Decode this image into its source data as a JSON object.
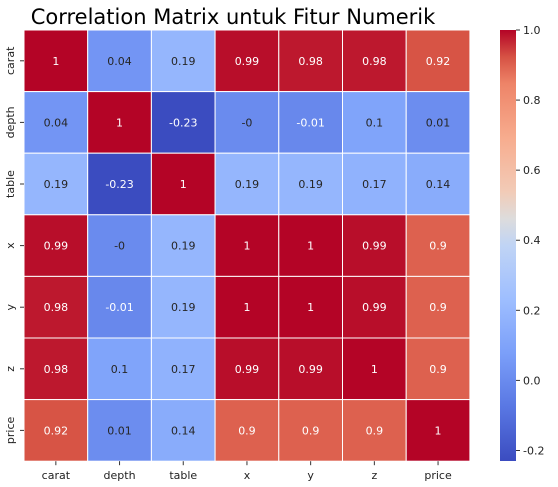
{
  "chart_data": {
    "type": "heatmap",
    "title": "Correlation Matrix untuk Fitur Numerik",
    "row_labels": [
      "carat",
      "depth",
      "table",
      "x",
      "y",
      "z",
      "price"
    ],
    "col_labels": [
      "carat",
      "depth",
      "table",
      "x",
      "y",
      "z",
      "price"
    ],
    "value_labels": [
      [
        "1",
        "0.04",
        "0.19",
        "0.99",
        "0.98",
        "0.98",
        "0.92"
      ],
      [
        "0.04",
        "1",
        "-0.23",
        "-0",
        "-0.01",
        "0.1",
        "0.01"
      ],
      [
        "0.19",
        "-0.23",
        "1",
        "0.19",
        "0.19",
        "0.17",
        "0.14"
      ],
      [
        "0.99",
        "-0",
        "0.19",
        "1",
        "1",
        "0.99",
        "0.9"
      ],
      [
        "0.98",
        "-0.01",
        "0.19",
        "1",
        "1",
        "0.99",
        "0.9"
      ],
      [
        "0.98",
        "0.1",
        "0.17",
        "0.99",
        "0.99",
        "1",
        "0.9"
      ],
      [
        "0.92",
        "0.01",
        "0.14",
        "0.9",
        "0.9",
        "0.9",
        "1"
      ]
    ],
    "colormap": "coolwarm",
    "vmin": -0.23,
    "vmax": 1.0,
    "colorbar_ticks": [
      "1.0",
      "0.8",
      "0.6",
      "0.4",
      "0.2",
      "0.0",
      "-0.2"
    ],
    "colorbar_tick_values": [
      1.0,
      0.8,
      0.6,
      0.4,
      0.2,
      0.0,
      -0.2
    ]
  }
}
